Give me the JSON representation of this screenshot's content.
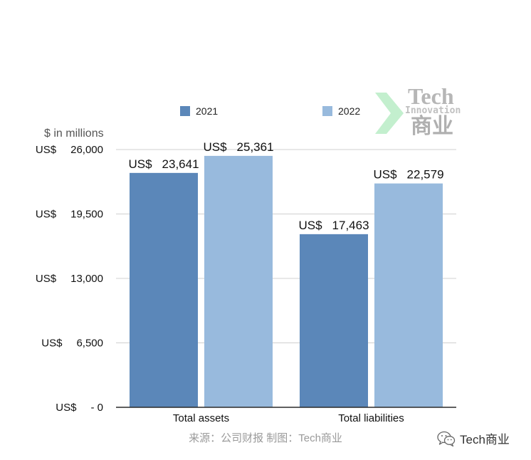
{
  "watermark": {
    "icon": "chevron-arrow-icon",
    "accent": "#b8ecc6",
    "line1": "Tech",
    "line2": "Innovation",
    "line3": "商业"
  },
  "footer": {
    "source": "来源：公司财报 制图：Tech商业"
  },
  "brand": {
    "icon": "wechat-icon",
    "label": "Tech商业"
  },
  "chart_data": {
    "type": "bar",
    "ylabel": "$ in millions",
    "categories": [
      "Total assets",
      "Total liabilities"
    ],
    "series": [
      {
        "name": "2021",
        "color": "#5b87b9",
        "values": [
          23641,
          17463
        ],
        "value_labels": [
          "23,641",
          "17,463"
        ]
      },
      {
        "name": "2022",
        "color": "#98badd",
        "values": [
          25361,
          22579
        ],
        "value_labels": [
          "25,361",
          "22,579"
        ]
      }
    ],
    "value_prefix": "US$",
    "ylim": [
      0,
      26000
    ],
    "y_ticks": [
      {
        "value": 0,
        "label": "- 0"
      },
      {
        "value": 6500,
        "label": "6,500"
      },
      {
        "value": 13000,
        "label": "13,000"
      },
      {
        "value": 19500,
        "label": "19,500"
      },
      {
        "value": 26000,
        "label": "26,000"
      }
    ],
    "grid": true,
    "legend_position": "top"
  }
}
